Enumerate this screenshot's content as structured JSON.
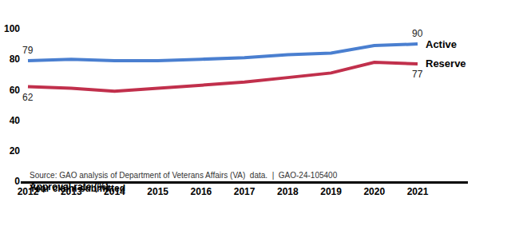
{
  "chart_data": {
    "type": "line",
    "y_label": "Approval rate (%)",
    "x_label": "Year claim submitted",
    "source": "Source: GAO analysis of Department of Veterans Affairs (VA)  data.  |  GAO-24-105400",
    "categories": [
      "2012",
      "2013",
      "2014",
      "2015",
      "2016",
      "2017",
      "2018",
      "2019",
      "2020",
      "2021"
    ],
    "series": [
      {
        "name": "Active",
        "color": "#4a7fd0",
        "values": [
          79,
          80,
          79,
          79,
          80,
          81,
          83,
          84,
          89,
          90
        ]
      },
      {
        "name": "Reserve",
        "color": "#c1304c",
        "values": [
          62,
          61,
          59,
          61,
          63,
          65,
          68,
          71,
          78,
          77
        ]
      }
    ],
    "ylim": [
      0,
      100
    ],
    "yticks": [
      0,
      20,
      40,
      60,
      80,
      100
    ],
    "grid": false,
    "annotations": [
      {
        "text": "79",
        "series": "Active",
        "category": "2012",
        "position": "above"
      },
      {
        "text": "62",
        "series": "Reserve",
        "category": "2012",
        "position": "below"
      },
      {
        "text": "90",
        "series": "Active",
        "category": "2021",
        "position": "above"
      },
      {
        "text": "77",
        "series": "Reserve",
        "category": "2021",
        "position": "below"
      }
    ]
  }
}
